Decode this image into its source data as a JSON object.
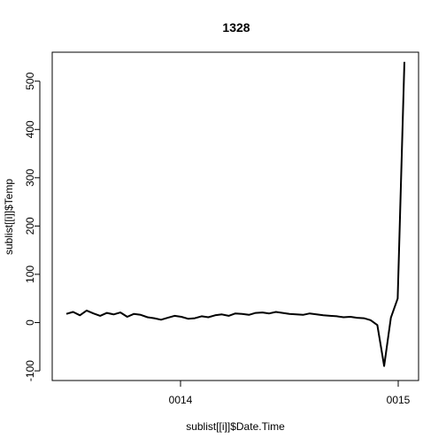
{
  "chart_data": {
    "type": "line",
    "title": "1328",
    "xlabel": "sublist[[i]]$Date.Time",
    "ylabel": "sublist[[i]]$Temp",
    "x_ticks": [
      "0014",
      "0015"
    ],
    "y_ticks": [
      -100,
      0,
      100,
      200,
      300,
      400,
      500
    ],
    "ylim": [
      -120,
      560
    ],
    "grid": false,
    "legend": "none",
    "series": [
      {
        "color": "#000000",
        "y": [
          18,
          22,
          15,
          25,
          19,
          14,
          20,
          17,
          21,
          12,
          18,
          16,
          11,
          9,
          6,
          10,
          14,
          12,
          8,
          9,
          13,
          11,
          15,
          17,
          14,
          19,
          18,
          16,
          20,
          21,
          19,
          22,
          20,
          18,
          17,
          16,
          19,
          17,
          15,
          14,
          13,
          11,
          12,
          10,
          9,
          5,
          -5,
          -90,
          10,
          50,
          540
        ]
      }
    ]
  }
}
